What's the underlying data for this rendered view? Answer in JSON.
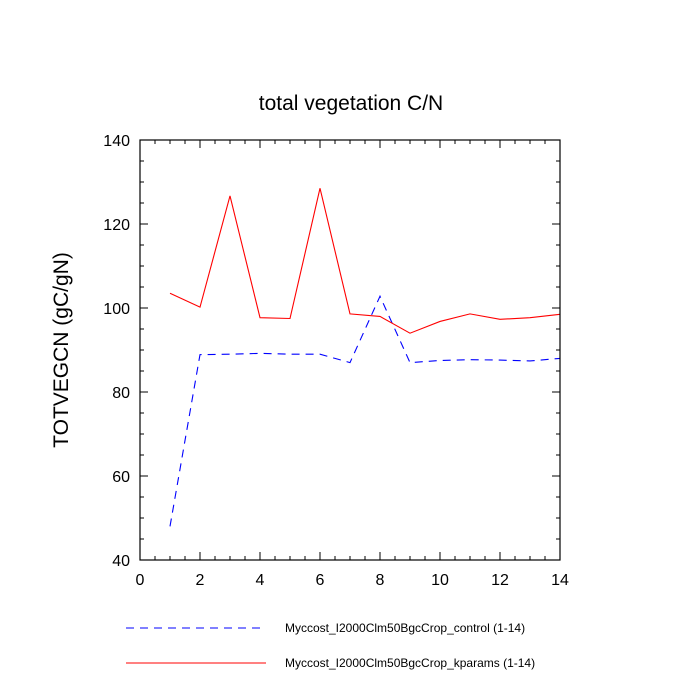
{
  "chart_data": {
    "type": "line",
    "title": "total vegetation C/N",
    "xlabel": "",
    "ylabel": "TOTVEGCN  (gC/gN)",
    "xlim": [
      0,
      14
    ],
    "ylim": [
      40,
      140
    ],
    "xticks": [
      0,
      2,
      4,
      6,
      8,
      10,
      12,
      14
    ],
    "yticks": [
      40,
      60,
      80,
      100,
      120,
      140
    ],
    "x": [
      1,
      2,
      3,
      4,
      5,
      6,
      7,
      8,
      9,
      10,
      11,
      12,
      13,
      14
    ],
    "series": [
      {
        "name": "Myccost_I2000Clm50BgcCrop_control (1-14)",
        "color": "#0000ff",
        "dash": "dashed",
        "values": [
          48,
          88.9,
          89.0,
          89.2,
          89.0,
          89.0,
          87.0,
          102.8,
          87.0,
          87.5,
          87.7,
          87.6,
          87.4,
          88.0
        ]
      },
      {
        "name": "Myccost_I2000Clm50BgcCrop_kparams (1-14)",
        "color": "#ff0000",
        "dash": "solid",
        "values": [
          103.5,
          100.2,
          126.7,
          97.7,
          97.5,
          128.5,
          98.6,
          98.0,
          94.0,
          96.8,
          98.6,
          97.3,
          97.7,
          98.5
        ]
      }
    ],
    "grid": false,
    "legend_position": "bottom"
  }
}
